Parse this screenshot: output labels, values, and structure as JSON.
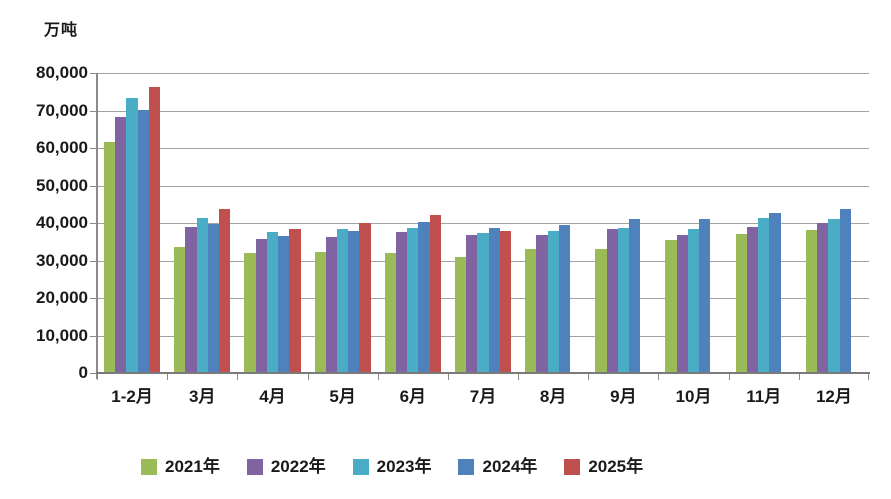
{
  "chart_data": {
    "type": "bar",
    "title": "",
    "ylabel": "万吨",
    "xlabel": "",
    "grid": true,
    "legend_position": "bottom",
    "categories": [
      "1-2月",
      "3月",
      "4月",
      "5月",
      "6月",
      "7月",
      "8月",
      "9月",
      "10月",
      "11月",
      "12月"
    ],
    "series": [
      {
        "name": "2021年",
        "color": "#9BBB59",
        "values": [
          61500,
          33500,
          31900,
          32400,
          32100,
          31000,
          33200,
          33000,
          35500,
          37100,
          38200
        ]
      },
      {
        "name": "2022年",
        "color": "#8064A2",
        "values": [
          68400,
          39000,
          35700,
          36400,
          37700,
          36900,
          36800,
          38300,
          36900,
          38900,
          39900
        ]
      },
      {
        "name": "2023年",
        "color": "#4BACC6",
        "values": [
          73300,
          41300,
          37700,
          38300,
          38800,
          37400,
          37900,
          38800,
          38500,
          41300,
          41200
        ]
      },
      {
        "name": "2024年",
        "color": "#4F81BD",
        "values": [
          70200,
          39700,
          36600,
          37900,
          40300,
          38700,
          39500,
          41200,
          41000,
          42800,
          43700
        ]
      },
      {
        "name": "2025年",
        "color": "#C0504D",
        "values": [
          76300,
          43700,
          38300,
          40100,
          42100,
          37800,
          null,
          null,
          null,
          null,
          null
        ]
      }
    ],
    "y_axis": {
      "min": 0,
      "max": 80000,
      "step": 10000,
      "tick_labels": [
        "0",
        "10,000",
        "20,000",
        "30,000",
        "40,000",
        "50,000",
        "60,000",
        "70,000",
        "80,000"
      ]
    }
  }
}
